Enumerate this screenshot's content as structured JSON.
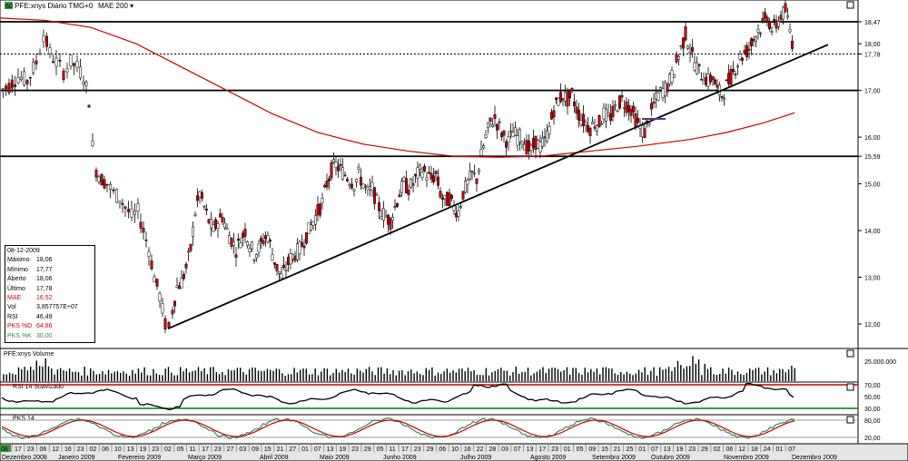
{
  "header": {
    "badge": "60",
    "symbol": "PFE:xnys Diário TMG+0",
    "indicator": "MAE 200"
  },
  "colors": {
    "ma": "#cc0000",
    "up": "#ffffff",
    "down": "#cc0000",
    "k": "#2e8b57",
    "d": "#cc0000",
    "rsi_hi": "#cc0000",
    "rsi_lo": "#008000"
  },
  "info": {
    "date": "08-12-2009",
    "rows": [
      {
        "k": "Máximo",
        "v": "18,06"
      },
      {
        "k": "Mínimo",
        "v": "17,77"
      },
      {
        "k": "Aberto",
        "v": "18,06"
      },
      {
        "k": "Último",
        "v": "17,78"
      },
      {
        "k": "MAE",
        "v": "16,52"
      },
      {
        "k": "Vol",
        "v": "3,857757E+07"
      },
      {
        "k": "RSI",
        "v": "46,49"
      },
      {
        "k": "PKS %D",
        "v": "64,86"
      },
      {
        "k": "PKS %K",
        "v": "30,00"
      }
    ]
  },
  "panels": {
    "volume_title": "PFE:xnys Volume",
    "volume_tick": "25.000.000",
    "rsi_title": "RSI 14 Suavizado",
    "rsi_ticks": [
      "70,00",
      "50,00",
      "30,00"
    ],
    "pks_title": "PKS 14",
    "pks_ticks": [
      "80,00",
      "20,00"
    ]
  },
  "chart_data": {
    "type": "candlestick",
    "price_ticks": [
      "18,47",
      "18,00",
      "17,78",
      "17,00",
      "16,00",
      "15,59",
      "15,00",
      "14,00",
      "13,00",
      "12,00"
    ],
    "ylim": [
      11.5,
      18.9
    ],
    "levels": [
      18.47,
      17.78,
      17.0,
      15.59
    ],
    "x_day_labels": [
      "17",
      "23",
      "06",
      "12",
      "16",
      "23",
      "02",
      "06",
      "10",
      "13",
      "19",
      "23",
      "02",
      "05",
      "11",
      "17",
      "23",
      "27",
      "03",
      "09",
      "15",
      "21",
      "27",
      "01",
      "07",
      "13",
      "19",
      "23",
      "29",
      "05",
      "11",
      "17",
      "23",
      "29",
      "06",
      "10",
      "16",
      "22",
      "28",
      "03",
      "07",
      "13",
      "17",
      "23",
      "01",
      "05",
      "09",
      "15",
      "21",
      "25",
      "01",
      "07",
      "13",
      "19",
      "23",
      "29",
      "02",
      "06",
      "12",
      "18",
      "24",
      "01",
      "07"
    ],
    "x_month_labels": [
      "Dezembro 2008",
      "Janeiro 2009",
      "Fevereiro 2009",
      "Março 2009",
      "Abril 2009",
      "Maio 2009",
      "Junho 2009",
      "Julho 2009",
      "Agosto 2009",
      "Setembro 2009",
      "Outubro 2009",
      "Novembro 2009",
      "Dezembro 2009"
    ],
    "x_first_label": "08",
    "close_path": [
      [
        0,
        17.0
      ],
      [
        10,
        17.1
      ],
      [
        20,
        17.3
      ],
      [
        30,
        17.2
      ],
      [
        40,
        17.6
      ],
      [
        48,
        18.2
      ],
      [
        55,
        17.8
      ],
      [
        62,
        17.6
      ],
      [
        70,
        17.4
      ],
      [
        78,
        17.6
      ],
      [
        85,
        17.5
      ],
      [
        92,
        17.3
      ],
      [
        98,
        16.8
      ],
      [
        102,
        15.8
      ],
      [
        106,
        15.3
      ],
      [
        112,
        15.1
      ],
      [
        118,
        15.0
      ],
      [
        125,
        14.8
      ],
      [
        132,
        14.7
      ],
      [
        138,
        14.5
      ],
      [
        145,
        14.3
      ],
      [
        152,
        14.4
      ],
      [
        158,
        14.0
      ],
      [
        164,
        13.6
      ],
      [
        170,
        13.0
      ],
      [
        176,
        12.6
      ],
      [
        182,
        12.0
      ],
      [
        186,
        11.9
      ],
      [
        190,
        12.3
      ],
      [
        195,
        12.8
      ],
      [
        200,
        12.9
      ],
      [
        205,
        13.2
      ],
      [
        210,
        13.6
      ],
      [
        215,
        14.4
      ],
      [
        220,
        14.8
      ],
      [
        225,
        14.5
      ],
      [
        230,
        14.2
      ],
      [
        235,
        14.0
      ],
      [
        240,
        14.2
      ],
      [
        245,
        14.3
      ],
      [
        250,
        14.0
      ],
      [
        255,
        13.8
      ],
      [
        260,
        13.6
      ],
      [
        265,
        13.8
      ],
      [
        270,
        14.0
      ],
      [
        275,
        13.7
      ],
      [
        280,
        13.5
      ],
      [
        285,
        13.6
      ],
      [
        290,
        13.8
      ],
      [
        295,
        13.9
      ],
      [
        300,
        13.5
      ],
      [
        305,
        13.2
      ],
      [
        310,
        13.0
      ],
      [
        315,
        13.2
      ],
      [
        320,
        13.4
      ],
      [
        325,
        13.5
      ],
      [
        330,
        13.6
      ],
      [
        335,
        13.8
      ],
      [
        340,
        14.0
      ],
      [
        345,
        14.2
      ],
      [
        350,
        14.4
      ],
      [
        355,
        14.6
      ],
      [
        360,
        15.0
      ],
      [
        365,
        15.3
      ],
      [
        370,
        15.4
      ],
      [
        375,
        15.3
      ],
      [
        380,
        15.2
      ],
      [
        385,
        15.1
      ],
      [
        390,
        15.0
      ],
      [
        395,
        15.2
      ],
      [
        400,
        15.0
      ],
      [
        405,
        14.8
      ],
      [
        410,
        14.9
      ],
      [
        415,
        14.6
      ],
      [
        420,
        14.4
      ],
      [
        425,
        14.3
      ],
      [
        430,
        14.2
      ],
      [
        435,
        14.5
      ],
      [
        440,
        14.8
      ],
      [
        445,
        15.0
      ],
      [
        450,
        14.9
      ],
      [
        455,
        15.0
      ],
      [
        460,
        15.2
      ],
      [
        465,
        15.3
      ],
      [
        470,
        15.2
      ],
      [
        475,
        15.1
      ],
      [
        480,
        15.2
      ],
      [
        485,
        14.8
      ],
      [
        490,
        14.6
      ],
      [
        495,
        14.7
      ],
      [
        500,
        14.5
      ],
      [
        505,
        14.4
      ],
      [
        510,
        14.8
      ],
      [
        515,
        15.0
      ],
      [
        520,
        15.2
      ],
      [
        525,
        15.1
      ],
      [
        530,
        15.6
      ],
      [
        535,
        16.0
      ],
      [
        540,
        16.3
      ],
      [
        545,
        16.4
      ],
      [
        550,
        16.2
      ],
      [
        555,
        16.0
      ],
      [
        560,
        15.9
      ],
      [
        565,
        16.1
      ],
      [
        570,
        16.0
      ],
      [
        575,
        16.0
      ],
      [
        580,
        15.8
      ],
      [
        585,
        15.7
      ],
      [
        590,
        15.9
      ],
      [
        595,
        15.8
      ],
      [
        600,
        15.9
      ],
      [
        605,
        16.2
      ],
      [
        610,
        16.6
      ],
      [
        615,
        16.8
      ],
      [
        620,
        16.9
      ],
      [
        625,
        16.8
      ],
      [
        630,
        16.9
      ],
      [
        635,
        16.6
      ],
      [
        640,
        16.4
      ],
      [
        645,
        16.3
      ],
      [
        650,
        16.2
      ],
      [
        655,
        16.3
      ],
      [
        660,
        16.3
      ],
      [
        665,
        16.5
      ],
      [
        670,
        16.4
      ],
      [
        675,
        16.5
      ],
      [
        680,
        16.7
      ],
      [
        685,
        16.8
      ],
      [
        690,
        16.7
      ],
      [
        695,
        16.6
      ],
      [
        700,
        16.4
      ],
      [
        705,
        16.2
      ],
      [
        710,
        16.1
      ],
      [
        715,
        16.4
      ],
      [
        720,
        16.7
      ],
      [
        725,
        16.9
      ],
      [
        730,
        17.0
      ],
      [
        735,
        17.1
      ],
      [
        740,
        17.3
      ],
      [
        745,
        17.6
      ],
      [
        750,
        17.9
      ],
      [
        755,
        18.2
      ],
      [
        760,
        17.9
      ],
      [
        765,
        17.6
      ],
      [
        770,
        17.4
      ],
      [
        775,
        17.3
      ],
      [
        780,
        17.2
      ],
      [
        785,
        17.3
      ],
      [
        790,
        17.0
      ],
      [
        795,
        16.9
      ],
      [
        800,
        17.1
      ],
      [
        805,
        17.3
      ],
      [
        810,
        17.5
      ],
      [
        815,
        17.7
      ],
      [
        820,
        17.8
      ],
      [
        825,
        17.9
      ],
      [
        830,
        18.1
      ],
      [
        835,
        18.3
      ],
      [
        840,
        18.4
      ],
      [
        845,
        18.6
      ],
      [
        850,
        18.3
      ],
      [
        855,
        18.4
      ],
      [
        860,
        18.6
      ],
      [
        865,
        18.7
      ],
      [
        870,
        18.3
      ],
      [
        875,
        17.78
      ]
    ],
    "ma_path": [
      [
        0,
        18.55
      ],
      [
        50,
        18.5
      ],
      [
        100,
        18.35
      ],
      [
        150,
        18.0
      ],
      [
        200,
        17.5
      ],
      [
        250,
        17.0
      ],
      [
        300,
        16.5
      ],
      [
        350,
        16.1
      ],
      [
        400,
        15.85
      ],
      [
        450,
        15.7
      ],
      [
        500,
        15.59
      ],
      [
        550,
        15.57
      ],
      [
        600,
        15.6
      ],
      [
        650,
        15.7
      ],
      [
        700,
        15.8
      ],
      [
        760,
        15.95
      ],
      [
        800,
        16.1
      ],
      [
        840,
        16.3
      ],
      [
        875,
        16.52
      ]
    ],
    "trendline": [
      [
        185,
        11.9
      ],
      [
        912,
        17.98
      ]
    ]
  }
}
